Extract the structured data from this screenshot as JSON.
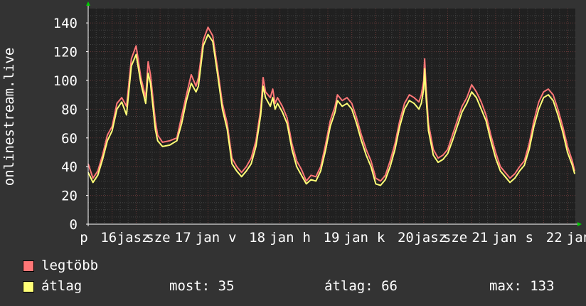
{
  "chart_data": {
    "type": "line",
    "ylabel": "onlinestream.live",
    "ylim": [
      0,
      150
    ],
    "yticks": [
      0,
      20,
      40,
      60,
      80,
      100,
      120,
      140
    ],
    "xticks": [
      "p",
      "16",
      "jasz",
      "sze",
      "17",
      "jan",
      "v",
      "18",
      "jan",
      "h",
      "19",
      "jan",
      "k",
      "20",
      "jasz",
      "sze",
      "21",
      "jan",
      "s",
      "22",
      "jan"
    ],
    "grid": true,
    "colors": {
      "background": "#333333",
      "plot": "#202020",
      "grid_minor": "#444444",
      "grid_major": "#6a3a3a",
      "axis": "#ffffff",
      "max_line": "#ff7777",
      "avg_line": "#ffff77",
      "arrow": "#00cc00"
    },
    "x_days": 7.6,
    "series": [
      {
        "name": "legtöbb",
        "key": "max",
        "points": [
          [
            0.0,
            42
          ],
          [
            0.1,
            32
          ],
          [
            0.2,
            37
          ],
          [
            0.3,
            48
          ],
          [
            0.4,
            62
          ],
          [
            0.5,
            68
          ],
          [
            0.6,
            84
          ],
          [
            0.7,
            88
          ],
          [
            0.8,
            82
          ],
          [
            0.9,
            115
          ],
          [
            1.0,
            124
          ],
          [
            1.1,
            102
          ],
          [
            1.2,
            88
          ],
          [
            1.25,
            113
          ],
          [
            1.3,
            104
          ],
          [
            1.4,
            72
          ],
          [
            1.45,
            62
          ],
          [
            1.55,
            57
          ],
          [
            1.7,
            58
          ],
          [
            1.85,
            60
          ],
          [
            1.95,
            75
          ],
          [
            2.05,
            90
          ],
          [
            2.15,
            104
          ],
          [
            2.25,
            96
          ],
          [
            2.3,
            102
          ],
          [
            2.4,
            128
          ],
          [
            2.5,
            137
          ],
          [
            2.6,
            131
          ],
          [
            2.7,
            108
          ],
          [
            2.8,
            84
          ],
          [
            2.9,
            70
          ],
          [
            3.0,
            46
          ],
          [
            3.1,
            40
          ],
          [
            3.2,
            36
          ],
          [
            3.3,
            40
          ],
          [
            3.4,
            46
          ],
          [
            3.5,
            58
          ],
          [
            3.6,
            80
          ],
          [
            3.65,
            102
          ],
          [
            3.7,
            92
          ],
          [
            3.8,
            88
          ],
          [
            3.85,
            94
          ],
          [
            3.9,
            84
          ],
          [
            3.95,
            88
          ],
          [
            4.05,
            82
          ],
          [
            4.15,
            74
          ],
          [
            4.25,
            56
          ],
          [
            4.35,
            44
          ],
          [
            4.45,
            38
          ],
          [
            4.55,
            30
          ],
          [
            4.65,
            34
          ],
          [
            4.75,
            33
          ],
          [
            4.85,
            40
          ],
          [
            4.95,
            55
          ],
          [
            5.05,
            72
          ],
          [
            5.15,
            82
          ],
          [
            5.2,
            90
          ],
          [
            5.3,
            86
          ],
          [
            5.4,
            88
          ],
          [
            5.5,
            84
          ],
          [
            5.6,
            74
          ],
          [
            5.7,
            62
          ],
          [
            5.8,
            52
          ],
          [
            5.9,
            44
          ],
          [
            6.0,
            32
          ],
          [
            6.1,
            30
          ],
          [
            6.2,
            34
          ],
          [
            6.3,
            44
          ],
          [
            6.4,
            56
          ],
          [
            6.5,
            72
          ],
          [
            6.6,
            84
          ],
          [
            6.7,
            90
          ],
          [
            6.8,
            88
          ],
          [
            6.9,
            85
          ],
          [
            6.95,
            90
          ],
          [
            7.0,
            100
          ],
          [
            7.02,
            115
          ],
          [
            7.05,
            95
          ],
          [
            7.1,
            70
          ],
          [
            7.2,
            52
          ],
          [
            7.3,
            46
          ],
          [
            7.4,
            48
          ],
          [
            7.5,
            52
          ],
          [
            7.6,
            62
          ],
          [
            7.7,
            72
          ],
          [
            7.8,
            82
          ],
          [
            7.9,
            88
          ],
          [
            8.0,
            97
          ],
          [
            8.1,
            92
          ],
          [
            8.2,
            85
          ],
          [
            8.3,
            76
          ],
          [
            8.4,
            62
          ],
          [
            8.5,
            50
          ],
          [
            8.6,
            40
          ],
          [
            8.7,
            36
          ],
          [
            8.8,
            32
          ],
          [
            8.9,
            35
          ],
          [
            9.0,
            40
          ],
          [
            9.1,
            44
          ],
          [
            9.2,
            56
          ],
          [
            9.3,
            72
          ],
          [
            9.4,
            85
          ],
          [
            9.5,
            92
          ],
          [
            9.6,
            94
          ],
          [
            9.7,
            90
          ],
          [
            9.8,
            80
          ],
          [
            9.9,
            68
          ],
          [
            10.0,
            54
          ],
          [
            10.1,
            44
          ],
          [
            10.15,
            37
          ]
        ]
      },
      {
        "name": "átlag",
        "key": "avg",
        "points": [
          [
            0.0,
            36
          ],
          [
            0.1,
            29
          ],
          [
            0.2,
            34
          ],
          [
            0.3,
            45
          ],
          [
            0.4,
            58
          ],
          [
            0.5,
            65
          ],
          [
            0.6,
            80
          ],
          [
            0.7,
            85
          ],
          [
            0.8,
            76
          ],
          [
            0.9,
            110
          ],
          [
            1.0,
            118
          ],
          [
            1.1,
            98
          ],
          [
            1.2,
            84
          ],
          [
            1.25,
            105
          ],
          [
            1.3,
            98
          ],
          [
            1.4,
            66
          ],
          [
            1.45,
            58
          ],
          [
            1.55,
            54
          ],
          [
            1.7,
            55
          ],
          [
            1.85,
            58
          ],
          [
            1.95,
            70
          ],
          [
            2.05,
            86
          ],
          [
            2.15,
            98
          ],
          [
            2.25,
            92
          ],
          [
            2.3,
            96
          ],
          [
            2.4,
            124
          ],
          [
            2.5,
            132
          ],
          [
            2.6,
            127
          ],
          [
            2.7,
            104
          ],
          [
            2.8,
            80
          ],
          [
            2.9,
            66
          ],
          [
            3.0,
            42
          ],
          [
            3.1,
            37
          ],
          [
            3.2,
            33
          ],
          [
            3.3,
            37
          ],
          [
            3.4,
            42
          ],
          [
            3.5,
            54
          ],
          [
            3.6,
            76
          ],
          [
            3.65,
            96
          ],
          [
            3.7,
            88
          ],
          [
            3.8,
            82
          ],
          [
            3.85,
            88
          ],
          [
            3.9,
            80
          ],
          [
            3.95,
            84
          ],
          [
            4.05,
            78
          ],
          [
            4.15,
            70
          ],
          [
            4.25,
            52
          ],
          [
            4.35,
            40
          ],
          [
            4.45,
            34
          ],
          [
            4.55,
            28
          ],
          [
            4.65,
            31
          ],
          [
            4.75,
            30
          ],
          [
            4.85,
            37
          ],
          [
            4.95,
            51
          ],
          [
            5.05,
            68
          ],
          [
            5.15,
            78
          ],
          [
            5.2,
            86
          ],
          [
            5.3,
            82
          ],
          [
            5.4,
            84
          ],
          [
            5.5,
            80
          ],
          [
            5.6,
            70
          ],
          [
            5.7,
            58
          ],
          [
            5.8,
            48
          ],
          [
            5.9,
            40
          ],
          [
            6.0,
            28
          ],
          [
            6.1,
            27
          ],
          [
            6.2,
            31
          ],
          [
            6.3,
            40
          ],
          [
            6.4,
            52
          ],
          [
            6.5,
            68
          ],
          [
            6.6,
            80
          ],
          [
            6.7,
            86
          ],
          [
            6.8,
            84
          ],
          [
            6.9,
            80
          ],
          [
            6.95,
            84
          ],
          [
            7.0,
            94
          ],
          [
            7.02,
            108
          ],
          [
            7.05,
            88
          ],
          [
            7.1,
            65
          ],
          [
            7.2,
            48
          ],
          [
            7.3,
            43
          ],
          [
            7.4,
            45
          ],
          [
            7.5,
            49
          ],
          [
            7.6,
            58
          ],
          [
            7.7,
            68
          ],
          [
            7.8,
            78
          ],
          [
            7.9,
            84
          ],
          [
            8.0,
            92
          ],
          [
            8.1,
            88
          ],
          [
            8.2,
            80
          ],
          [
            8.3,
            72
          ],
          [
            8.4,
            58
          ],
          [
            8.5,
            46
          ],
          [
            8.6,
            37
          ],
          [
            8.7,
            33
          ],
          [
            8.8,
            29
          ],
          [
            8.9,
            32
          ],
          [
            9.0,
            37
          ],
          [
            9.1,
            41
          ],
          [
            9.2,
            52
          ],
          [
            9.3,
            68
          ],
          [
            9.4,
            80
          ],
          [
            9.5,
            88
          ],
          [
            9.6,
            90
          ],
          [
            9.7,
            86
          ],
          [
            9.8,
            76
          ],
          [
            9.9,
            64
          ],
          [
            10.0,
            50
          ],
          [
            10.1,
            41
          ],
          [
            10.15,
            35
          ]
        ]
      }
    ]
  },
  "legend": {
    "max_label": "legtöbb",
    "avg_label": "átlag",
    "now_text": "most: 35",
    "avg_text": "átlag: 66",
    "max_text": "max: 133"
  }
}
